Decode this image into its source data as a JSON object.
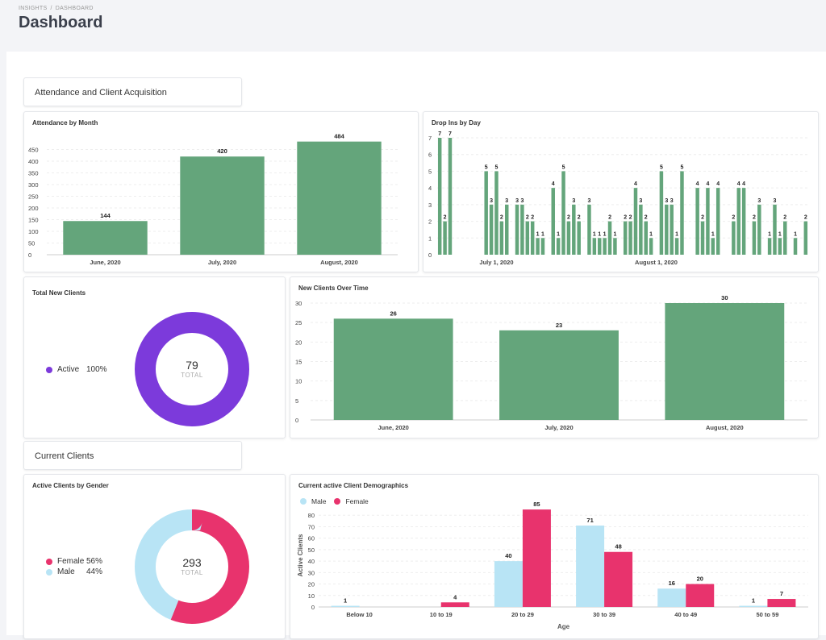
{
  "breadcrumb": {
    "root": "INSIGHTS",
    "current": "DASHBOARD"
  },
  "page_title": "Dashboard",
  "sections": {
    "acquisition": "Attendance and Client Acquisition",
    "current": "Current Clients"
  },
  "colors": {
    "green": "#64a57b",
    "purple": "#7c3adb",
    "pink": "#e8336d",
    "light_blue": "#b8e4f5"
  },
  "cards": {
    "attendance": "Attendance by Month",
    "dropins": "Drop Ins by Day",
    "total_new": "Total New Clients",
    "new_over_time": "New Clients Over Time",
    "gender": "Active Clients by Gender",
    "demographics": "Current active Client Demographics"
  },
  "total_new": {
    "legend_label": "Active",
    "legend_value": "100%",
    "total": "79",
    "caption": "TOTAL"
  },
  "gender": {
    "legend": [
      {
        "label": "Female",
        "value": "56%"
      },
      {
        "label": "Male",
        "value": "44%"
      }
    ],
    "total": "293",
    "caption": "TOTAL"
  },
  "chart_data": [
    {
      "id": "attendance",
      "type": "bar",
      "title": "Attendance by Month",
      "categories": [
        "June, 2020",
        "July, 2020",
        "August, 2020"
      ],
      "values": [
        144,
        420,
        484
      ],
      "yticks": [
        0,
        50,
        100,
        150,
        200,
        250,
        300,
        350,
        400,
        450
      ],
      "ylim": [
        0,
        500
      ],
      "grid": true
    },
    {
      "id": "dropins",
      "type": "bar",
      "title": "Drop Ins by Day",
      "values": [
        7,
        2,
        7,
        0,
        0,
        0,
        0,
        0,
        0,
        5,
        3,
        5,
        2,
        3,
        0,
        3,
        3,
        2,
        2,
        1,
        1,
        0,
        4,
        1,
        5,
        2,
        3,
        2,
        0,
        3,
        1,
        1,
        1,
        2,
        1,
        0,
        2,
        2,
        4,
        3,
        2,
        1,
        0,
        5,
        3,
        3,
        1,
        5,
        0,
        0,
        4,
        2,
        4,
        1,
        4,
        0,
        0,
        2,
        4,
        4,
        0,
        2,
        3,
        0,
        1,
        3,
        1,
        2,
        0,
        1,
        0,
        2
      ],
      "x_tick_labels": [
        {
          "index": 11,
          "label": "July 1, 2020"
        },
        {
          "index": 42,
          "label": "August 1, 2020"
        }
      ],
      "yticks": [
        0,
        1,
        2,
        3,
        4,
        5,
        6,
        7
      ],
      "ylim": [
        0,
        7
      ],
      "grid": true
    },
    {
      "id": "total_new",
      "type": "pie",
      "title": "Total New Clients",
      "labels": [
        "Active"
      ],
      "values": [
        100
      ],
      "total": 79
    },
    {
      "id": "new_over_time",
      "type": "bar",
      "title": "New Clients Over Time",
      "categories": [
        "June, 2020",
        "July, 2020",
        "August, 2020"
      ],
      "values": [
        26,
        23,
        30
      ],
      "yticks": [
        0,
        5,
        10,
        15,
        20,
        25,
        30
      ],
      "ylim": [
        0,
        30
      ],
      "grid": true
    },
    {
      "id": "gender",
      "type": "pie",
      "title": "Active Clients by Gender",
      "labels": [
        "Female",
        "Male"
      ],
      "values": [
        56,
        44
      ],
      "total": 293
    },
    {
      "id": "demographics",
      "type": "bar",
      "title": "Current active Client Demographics",
      "categories": [
        "Below 10",
        "10 to 19",
        "20 to 29",
        "30 to 39",
        "40 to 49",
        "50 to 59"
      ],
      "series": [
        {
          "name": "Male",
          "values": [
            1,
            0,
            40,
            71,
            16,
            1
          ]
        },
        {
          "name": "Female",
          "values": [
            0,
            4,
            85,
            48,
            20,
            7
          ]
        }
      ],
      "xlabel": "Age",
      "ylabel": "Active Clients",
      "yticks": [
        0,
        10,
        20,
        30,
        40,
        50,
        60,
        70,
        80
      ],
      "ylim": [
        0,
        90
      ],
      "grid": true,
      "legend_position": "top-left"
    }
  ]
}
